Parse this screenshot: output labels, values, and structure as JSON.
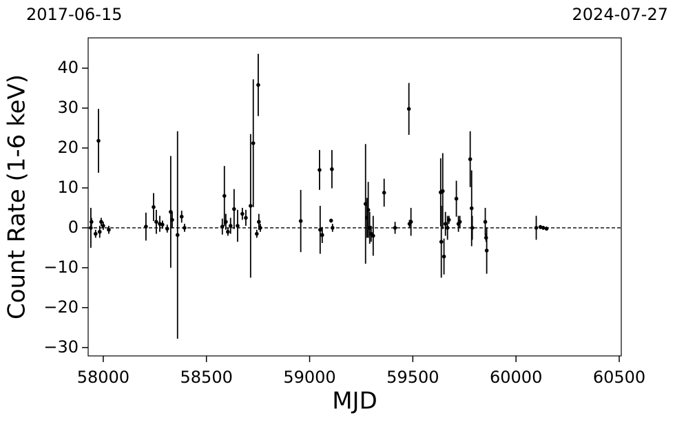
{
  "chart_data": {
    "type": "errorbar",
    "annotations": [
      "2017-06-15",
      "2024-07-27"
    ],
    "xlabel": "MJD",
    "ylabel": "Count Rate (1-6 keV)",
    "xlim": [
      57927,
      60510
    ],
    "ylim": [
      -32.1,
      47.6
    ],
    "xticks": [
      58000,
      58500,
      59000,
      59500,
      60000,
      60500
    ],
    "yticks": [
      {
        "value": -30,
        "label": "−30"
      },
      {
        "value": -20,
        "label": "−20"
      },
      {
        "value": -10,
        "label": "−10"
      },
      0,
      10,
      20,
      30,
      40
    ],
    "hline": 0,
    "color": "#000000",
    "x": [
      57940,
      57943,
      57963,
      57977,
      57983,
      57990,
      58000,
      58027,
      58207,
      58244,
      58257,
      58274,
      58287,
      58310,
      58327,
      58334,
      58360,
      58380,
      58394,
      58577,
      58587,
      58594,
      58604,
      58617,
      58634,
      58651,
      58674,
      58691,
      58714,
      58727,
      58744,
      58751,
      58754,
      58761,
      58957,
      59048,
      59051,
      59061,
      59104,
      59108,
      59111,
      59271,
      59278,
      59284,
      59291,
      59298,
      59308,
      59361,
      59414,
      59481,
      59484,
      59491,
      59635,
      59638,
      59645,
      59651,
      59658,
      59668,
      59675,
      59711,
      59721,
      59728,
      59778,
      59785,
      59788,
      59851,
      59855,
      59858,
      60098,
      60118,
      60132,
      60148
    ],
    "values": [
      0,
      1.5,
      -1.5,
      21.8,
      -1,
      1.5,
      0.5,
      -0.5,
      0.3,
      5.2,
      1.5,
      1,
      0.8,
      -0.2,
      4,
      2,
      -1.8,
      2.8,
      0,
      0.3,
      8,
      1.5,
      -1,
      0.5,
      4.7,
      0.5,
      3.5,
      2.5,
      5.5,
      21.2,
      -1.5,
      35.8,
      1.5,
      0,
      1.7,
      14.5,
      -0.5,
      -1.8,
      1.8,
      14.7,
      0,
      6,
      2.5,
      4.5,
      0,
      -1.5,
      -2,
      8.8,
      0,
      29.8,
      1,
      1.5,
      8.9,
      -3.5,
      9.2,
      -7.2,
      1,
      0,
      2,
      7.3,
      1,
      1.5,
      17.2,
      4.9,
      0,
      1.5,
      -2.5,
      -5.7,
      0,
      0.2,
      0,
      -0.2
    ],
    "errors": [
      5,
      1,
      1,
      8,
      1.5,
      1,
      1,
      1,
      3.5,
      3.5,
      3,
      2,
      1,
      1,
      14,
      2,
      26,
      1.5,
      1,
      2,
      7.5,
      2,
      1,
      2,
      5,
      4,
      1.5,
      2,
      18,
      16,
      1,
      7.8,
      2,
      1,
      7.8,
      5,
      6,
      2,
      0.5,
      4.8,
      1,
      15,
      5,
      7,
      4,
      2,
      5,
      3.5,
      1.5,
      6.5,
      1,
      3.5,
      8.5,
      9,
      9.5,
      4.5,
      3,
      3,
      1,
      4.5,
      2,
      1.5,
      7,
      9.5,
      3,
      3.5,
      1,
      5.8,
      3,
      0.5,
      0.5,
      0.5
    ]
  }
}
